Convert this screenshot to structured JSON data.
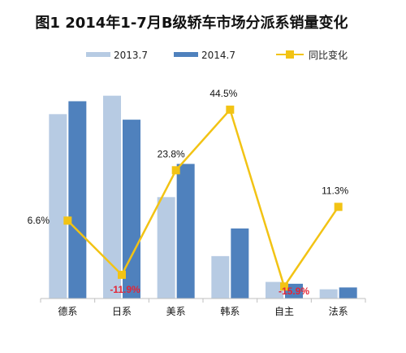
{
  "chart_data": {
    "type": "bar",
    "title": "图1  2014年1-7月B级轿车市场分派系销量变化",
    "categories": [
      "德系",
      "日系",
      "美系",
      "韩系",
      "自主",
      "法系"
    ],
    "series": [
      {
        "name": "2013.7",
        "type": "bar",
        "color": "#b7cbe3",
        "values": [
          100,
          110,
          55,
          23,
          9,
          5
        ]
      },
      {
        "name": "2014.7",
        "type": "bar",
        "color": "#4f81bd",
        "values": [
          107,
          97,
          73,
          38,
          8,
          6
        ]
      },
      {
        "name": "同比变化",
        "type": "line",
        "color": "#f2c314",
        "values": [
          6.6,
          -11.9,
          23.8,
          44.5,
          -15.9,
          11.3
        ]
      }
    ],
    "data_labels": [
      "6.6%",
      "-11.9%",
      "23.8%",
      "44.5%",
      "-15.9%",
      "11.3%"
    ],
    "bar_scale": [
      0,
      120
    ],
    "line_scale": [
      -20,
      50
    ],
    "legend_position": "top",
    "grid": false
  }
}
